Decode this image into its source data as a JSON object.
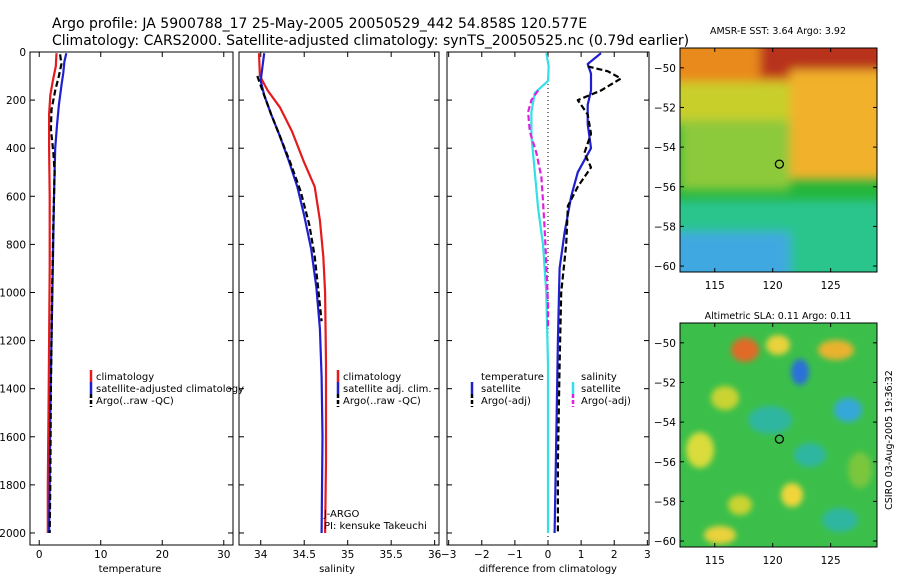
{
  "header": {
    "line1": "Argo profile: JA 5900788_17 25-May-2005 20050529_442 54.858S 120.577E",
    "line2": "Climatology: CARS2000. Satellite-adjusted climatology: synTS_20050525.nc (0.79d earlier)"
  },
  "side_note": "CSIRO 03-Aug-2005 19:36:32",
  "colors": {
    "climatology": "#e41a1c",
    "satellite": "#1f1fd0",
    "argo": "#000000",
    "salinity_sat": "#33e0e6",
    "salinity_argo": "#e020e0"
  },
  "chart_data": [
    {
      "id": "temperature",
      "type": "line",
      "xlabel": "temperature",
      "xlim": [
        -1.5,
        31.5
      ],
      "xticks": [
        0,
        10,
        20,
        30
      ],
      "ylim": [
        0,
        2050
      ],
      "yticks": [
        0,
        200,
        400,
        600,
        800,
        1000,
        1200,
        1400,
        1600,
        1800,
        2000
      ],
      "legend": [
        "climatology",
        "satellite-adjusted climatology",
        "Argo(..raw -QC)"
      ],
      "series": [
        {
          "name": "climatology",
          "style": "solid",
          "color": "#e41a1c",
          "points": [
            [
              2.8,
              5
            ],
            [
              2.7,
              60
            ],
            [
              2.2,
              120
            ],
            [
              1.8,
              180
            ],
            [
              1.6,
              260
            ],
            [
              1.6,
              400
            ],
            [
              1.7,
              600
            ],
            [
              1.7,
              900
            ],
            [
              1.6,
              1200
            ],
            [
              1.5,
              1500
            ],
            [
              1.4,
              1800
            ],
            [
              1.4,
              2000
            ]
          ]
        },
        {
          "name": "satellite-adjusted climatology",
          "style": "solid",
          "color": "#1f1fd0",
          "points": [
            [
              4.4,
              5
            ],
            [
              4.1,
              40
            ],
            [
              3.9,
              90
            ],
            [
              3.6,
              140
            ],
            [
              3.2,
              220
            ],
            [
              2.9,
              300
            ],
            [
              2.6,
              400
            ],
            [
              2.4,
              600
            ],
            [
              2.2,
              900
            ],
            [
              2.0,
              1200
            ],
            [
              1.8,
              1500
            ],
            [
              1.7,
              1800
            ],
            [
              1.6,
              2000
            ]
          ]
        },
        {
          "name": "Argo(..raw -QC)",
          "style": "dashed",
          "color": "#000000",
          "points": [
            [
              3.4,
              10
            ],
            [
              3.6,
              50
            ],
            [
              3.2,
              100
            ],
            [
              2.6,
              160
            ],
            [
              2.0,
              240
            ],
            [
              1.9,
              320
            ],
            [
              2.3,
              420
            ],
            [
              2.5,
              500
            ],
            [
              2.3,
              700
            ],
            [
              2.1,
              1000
            ],
            [
              1.9,
              1400
            ],
            [
              1.8,
              1800
            ],
            [
              1.7,
              2000
            ]
          ]
        }
      ]
    },
    {
      "id": "salinity",
      "type": "line",
      "xlabel": "salinity",
      "xlim": [
        33.75,
        36.05
      ],
      "xticks": [
        34,
        34.5,
        35,
        35.5,
        36
      ],
      "xtick_labels": [
        "34",
        "34.5",
        "35",
        "35.5",
        "36"
      ],
      "ylim": [
        0,
        2050
      ],
      "legend": [
        "climatology",
        "satellite adj. clim.",
        "Argo(..raw -QC)"
      ],
      "annotation": [
        "J-ARGO",
        "PI: kensuke Takeuchi"
      ],
      "series": [
        {
          "name": "climatology",
          "style": "solid",
          "color": "#e41a1c",
          "points": [
            [
              33.98,
              5
            ],
            [
              33.99,
              100
            ],
            [
              34.08,
              160
            ],
            [
              34.22,
              230
            ],
            [
              34.36,
              330
            ],
            [
              34.5,
              460
            ],
            [
              34.62,
              560
            ],
            [
              34.68,
              700
            ],
            [
              34.72,
              850
            ],
            [
              34.74,
              1000
            ],
            [
              34.75,
              1300
            ],
            [
              34.75,
              1700
            ],
            [
              34.74,
              2000
            ]
          ]
        },
        {
          "name": "satellite adj. clim.",
          "style": "solid",
          "color": "#1f1fd0",
          "points": [
            [
              34.04,
              5
            ],
            [
              34.02,
              60
            ],
            [
              34.0,
              120
            ],
            [
              34.04,
              180
            ],
            [
              34.12,
              260
            ],
            [
              34.22,
              350
            ],
            [
              34.32,
              450
            ],
            [
              34.42,
              560
            ],
            [
              34.5,
              680
            ],
            [
              34.58,
              820
            ],
            [
              34.64,
              980
            ],
            [
              34.68,
              1150
            ],
            [
              34.7,
              1350
            ],
            [
              34.71,
              1600
            ],
            [
              34.7,
              2000
            ]
          ]
        },
        {
          "name": "Argo(..raw -QC)",
          "style": "dashed",
          "color": "#000000",
          "points": [
            [
              33.96,
              100
            ],
            [
              34.02,
              160
            ],
            [
              34.12,
              260
            ],
            [
              34.22,
              350
            ],
            [
              34.34,
              460
            ],
            [
              34.46,
              580
            ],
            [
              34.56,
              720
            ],
            [
              34.62,
              850
            ],
            [
              34.66,
              980
            ],
            [
              34.7,
              1120
            ]
          ]
        }
      ]
    },
    {
      "id": "difference",
      "type": "line",
      "xlabel": "difference from climatology",
      "xlim": [
        -3.05,
        3.05
      ],
      "xticks": [
        -3,
        -2,
        -1,
        0,
        1,
        2,
        3
      ],
      "ylim": [
        0,
        2050
      ],
      "legend_temperature": [
        "temperature",
        "satellite",
        "Argo(-adj)"
      ],
      "legend_salinity": [
        "salinity",
        "satellite",
        "Argo(-adj)"
      ],
      "series": [
        {
          "name": "temperature satellite",
          "style": "solid",
          "color": "#1f1fd0",
          "points": [
            [
              1.6,
              5
            ],
            [
              1.2,
              50
            ],
            [
              1.3,
              90
            ],
            [
              1.3,
              160
            ],
            [
              1.2,
              220
            ],
            [
              1.2,
              300
            ],
            [
              1.3,
              400
            ],
            [
              0.9,
              500
            ],
            [
              0.7,
              600
            ],
            [
              0.5,
              750
            ],
            [
              0.35,
              900
            ],
            [
              0.3,
              1200
            ],
            [
              0.25,
              1600
            ],
            [
              0.2,
              2000
            ]
          ]
        },
        {
          "name": "temperature Argo(-adj)",
          "style": "dashed",
          "color": "#000000",
          "points": [
            [
              1.2,
              60
            ],
            [
              1.8,
              80
            ],
            [
              2.2,
              110
            ],
            [
              1.6,
              160
            ],
            [
              0.9,
              200
            ],
            [
              1.2,
              260
            ],
            [
              1.3,
              340
            ],
            [
              1.1,
              420
            ],
            [
              1.3,
              480
            ],
            [
              0.9,
              560
            ],
            [
              0.6,
              640
            ],
            [
              0.55,
              800
            ],
            [
              0.4,
              1000
            ],
            [
              0.35,
              1300
            ],
            [
              0.3,
              1700
            ],
            [
              0.3,
              2000
            ]
          ]
        },
        {
          "name": "salinity satellite",
          "style": "solid",
          "color": "#33e0e6",
          "points": [
            [
              -0.05,
              5
            ],
            [
              0.02,
              60
            ],
            [
              0.0,
              120
            ],
            [
              -0.4,
              170
            ],
            [
              -0.5,
              250
            ],
            [
              -0.5,
              350
            ],
            [
              -0.4,
              500
            ],
            [
              -0.3,
              650
            ],
            [
              -0.15,
              800
            ],
            [
              -0.05,
              1000
            ],
            [
              0.0,
              1300
            ],
            [
              0.0,
              1700
            ],
            [
              0.0,
              2000
            ]
          ]
        },
        {
          "name": "salinity Argo(-adj)",
          "style": "dashed",
          "color": "#e020e0",
          "points": [
            [
              -0.3,
              160
            ],
            [
              -0.5,
              200
            ],
            [
              -0.6,
              250
            ],
            [
              -0.55,
              330
            ],
            [
              -0.35,
              420
            ],
            [
              -0.2,
              520
            ],
            [
              -0.15,
              620
            ],
            [
              -0.1,
              740
            ],
            [
              -0.05,
              880
            ],
            [
              0.0,
              1050
            ],
            [
              0.0,
              1150
            ]
          ]
        }
      ]
    },
    {
      "id": "sst_map",
      "type": "heatmap",
      "title": "AMSR-E SST: 3.64  Argo: 3.92",
      "xlim": [
        112,
        129
      ],
      "ylim": [
        -60.3,
        -49
      ],
      "xticks": [
        115,
        120,
        125
      ],
      "yticks": [
        -50,
        -52,
        -54,
        -56,
        -58,
        -60
      ],
      "ytick_labels": [
        "-50",
        "-52",
        "-54",
        "-56",
        "-58",
        "-60"
      ],
      "marker": [
        120.577,
        -54.858
      ]
    },
    {
      "id": "sla_map",
      "type": "heatmap",
      "title": "Altimetric SLA: 0.11  Argo: 0.11",
      "xlim": [
        112,
        129
      ],
      "ylim": [
        -60.3,
        -49
      ],
      "xticks": [
        115,
        120,
        125
      ],
      "yticks": [
        -50,
        -52,
        -54,
        -56,
        -58,
        -60
      ],
      "ytick_labels": [
        "-50",
        "-52",
        "-54",
        "-56",
        "-58",
        "-60"
      ],
      "marker": [
        120.577,
        -54.858
      ]
    }
  ]
}
